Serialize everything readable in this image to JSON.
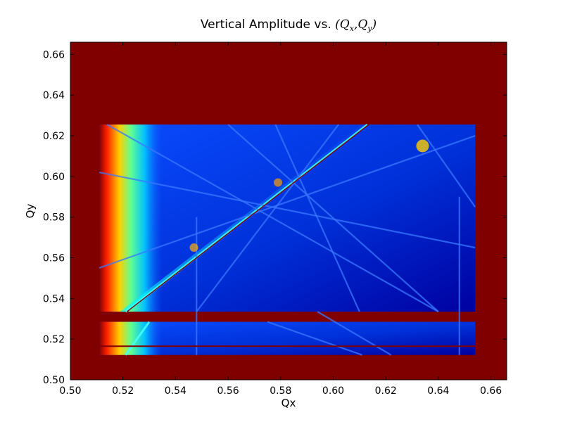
{
  "chart_data": {
    "type": "heatmap",
    "title": "Vertical Amplitude vs. (Q_x, Q_y)",
    "title_text": "Vertical Amplitude vs. ",
    "title_math": {
      "open": "(",
      "q": "Q",
      "sub_x": "x",
      "comma": ",",
      "sub_y": "y",
      "close": ")"
    },
    "xlabel": "Qx",
    "ylabel": "Qy",
    "xlim": [
      0.5,
      0.666
    ],
    "ylim": [
      0.5,
      0.666
    ],
    "xticks": [
      "0.50",
      "0.52",
      "0.54",
      "0.56",
      "0.58",
      "0.60",
      "0.62",
      "0.64",
      "0.66"
    ],
    "yticks": [
      "0.50",
      "0.52",
      "0.54",
      "0.56",
      "0.58",
      "0.60",
      "0.62",
      "0.64",
      "0.66"
    ],
    "colormap": "jet",
    "colors": {
      "background": "#800000",
      "low": "#0000a8",
      "mid_low": "#0a3cff",
      "mid": "#00e0ff",
      "mid_high": "#ffff00",
      "high": "#ff3000",
      "saturated": "#800000"
    },
    "scanned_regions": [
      {
        "x": [
          0.511,
          0.654
        ],
        "y": [
          0.5335,
          0.6255
        ]
      },
      {
        "x": [
          0.511,
          0.654
        ],
        "y": [
          0.5122,
          0.5285
        ]
      }
    ],
    "saturated_line": {
      "y": 0.5165
    },
    "resonance_lines": [
      {
        "x": [
          0.521,
          0.613
        ],
        "y": [
          0.5335,
          0.6255
        ]
      },
      {
        "x": [
          0.521,
          0.53
        ],
        "y": [
          0.5122,
          0.5285
        ]
      },
      {
        "x": [
          0.514,
          0.64
        ],
        "y": [
          0.6255,
          0.5335
        ]
      },
      {
        "x": [
          0.56,
          0.64
        ],
        "y": [
          0.6255,
          0.5335
        ]
      },
      {
        "x": [
          0.602,
          0.548
        ],
        "y": [
          0.6255,
          0.5335
        ]
      },
      {
        "x": [
          0.632,
          0.654
        ],
        "y": [
          0.6255,
          0.585
        ]
      },
      {
        "x": [
          0.548,
          0.548
        ],
        "y": [
          0.5122,
          0.58
        ]
      },
      {
        "x": [
          0.648,
          0.648
        ],
        "y": [
          0.5122,
          0.59
        ]
      },
      {
        "x": [
          0.578,
          0.61
        ],
        "y": [
          0.6255,
          0.5335
        ]
      },
      {
        "x": [
          0.511,
          0.654
        ],
        "y": [
          0.602,
          0.565
        ]
      },
      {
        "x": [
          0.511,
          0.654
        ],
        "y": [
          0.555,
          0.62
        ]
      },
      {
        "x": [
          0.594,
          0.622
        ],
        "y": [
          0.5335,
          0.5122
        ]
      },
      {
        "x": [
          0.575,
          0.611
        ],
        "y": [
          0.5285,
          0.5122
        ]
      }
    ]
  }
}
